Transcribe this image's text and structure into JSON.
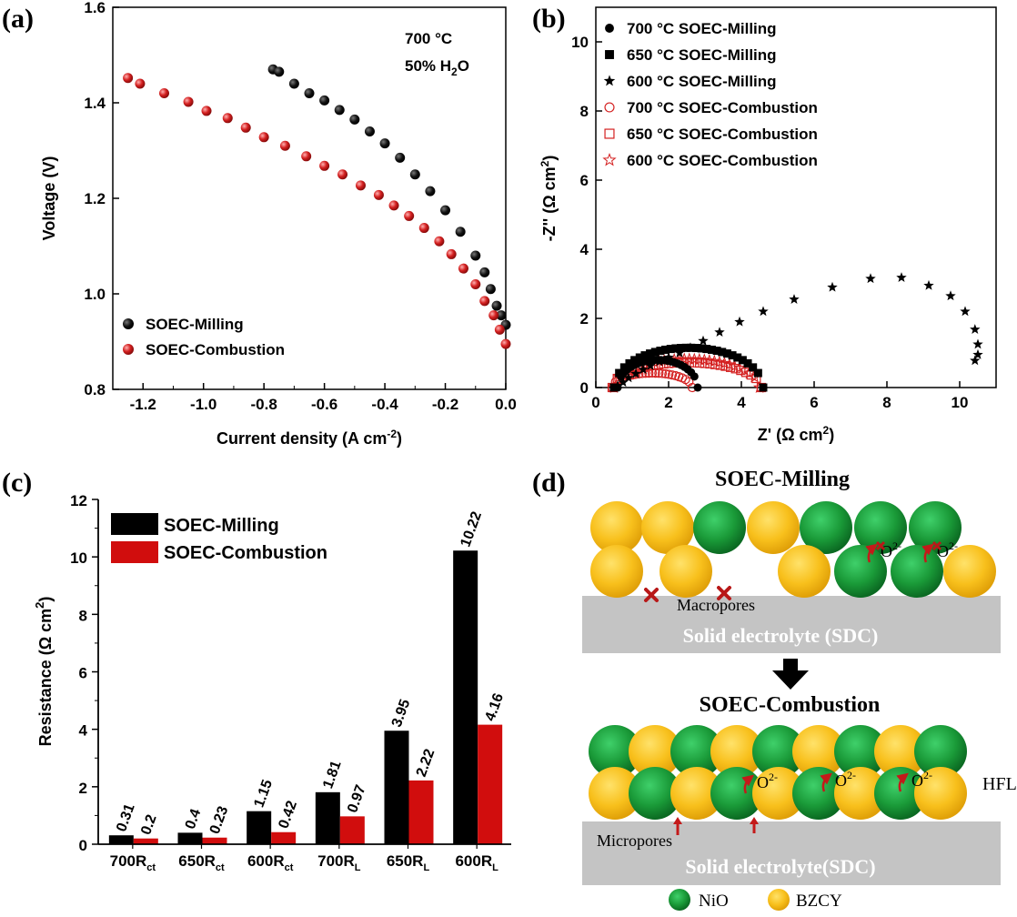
{
  "panel_labels": {
    "a": "(a)",
    "b": "(b)",
    "c": "(c)",
    "d": "(d)"
  },
  "chart_data": [
    {
      "type": "scatter",
      "panel": "a",
      "xlabel": "Current density (A cm",
      "xlabel_sup": "-2",
      "xlabel_end": ")",
      "ylabel": "Voltage (V)",
      "xlim": [
        -1.3,
        0.0
      ],
      "ylim": [
        0.8,
        1.6
      ],
      "xticks": [
        "-1.2",
        "-1.0",
        "-0.8",
        "-0.6",
        "-0.4",
        "-0.2",
        "0.0"
      ],
      "xtick_values": [
        -1.2,
        -1.0,
        -0.8,
        -0.6,
        -0.4,
        -0.2,
        0.0
      ],
      "yticks": [
        "0.8",
        "1.0",
        "1.2",
        "1.4",
        "1.6"
      ],
      "ytick_values": [
        0.8,
        1.0,
        1.2,
        1.4,
        1.6
      ],
      "annotation_temp": "700 °C",
      "annotation_h2o_a": "50% H",
      "annotation_h2o_sub": "2",
      "annotation_h2o_b": "O",
      "legend_position": "bottom-left",
      "series": [
        {
          "name": "SOEC-Milling",
          "color": "#000000",
          "x": [
            -0.77,
            -0.75,
            -0.7,
            -0.65,
            -0.6,
            -0.55,
            -0.5,
            -0.45,
            -0.4,
            -0.35,
            -0.3,
            -0.25,
            -0.2,
            -0.15,
            -0.1,
            -0.07,
            -0.05,
            -0.03,
            -0.015,
            0.0
          ],
          "y": [
            1.47,
            1.465,
            1.44,
            1.42,
            1.405,
            1.385,
            1.365,
            1.34,
            1.315,
            1.285,
            1.25,
            1.215,
            1.175,
            1.13,
            1.08,
            1.045,
            1.01,
            0.975,
            0.955,
            0.935
          ]
        },
        {
          "name": "SOEC-Combustion",
          "color": "#d42020",
          "x": [
            -1.25,
            -1.21,
            -1.13,
            -1.05,
            -0.99,
            -0.92,
            -0.86,
            -0.8,
            -0.73,
            -0.66,
            -0.6,
            -0.54,
            -0.48,
            -0.42,
            -0.37,
            -0.32,
            -0.27,
            -0.22,
            -0.18,
            -0.14,
            -0.1,
            -0.07,
            -0.04,
            -0.02,
            0.0
          ],
          "y": [
            1.452,
            1.44,
            1.42,
            1.402,
            1.383,
            1.368,
            1.348,
            1.328,
            1.31,
            1.288,
            1.268,
            1.25,
            1.227,
            1.207,
            1.185,
            1.163,
            1.138,
            1.11,
            1.083,
            1.053,
            1.02,
            0.985,
            0.955,
            0.925,
            0.895
          ]
        }
      ]
    },
    {
      "type": "scatter",
      "panel": "b",
      "xlabel": "Z' (Ω cm",
      "xlabel_sup": "2",
      "xlabel_end": ")",
      "ylabel": "-Z'' (Ω cm",
      "ylabel_sup": "2",
      "ylabel_end": ")",
      "xlim": [
        0,
        11
      ],
      "ylim": [
        0,
        11
      ],
      "xticks": [
        "0",
        "2",
        "4",
        "6",
        "8",
        "10"
      ],
      "xtick_values": [
        0,
        2,
        4,
        6,
        8,
        10
      ],
      "yticks": [
        "0",
        "2",
        "4",
        "6",
        "8",
        "10"
      ],
      "ytick_values": [
        0,
        2,
        4,
        6,
        8,
        10
      ],
      "legend_position": "top-left",
      "series": [
        {
          "name": "700 °C SOEC-Milling",
          "marker": "circle-filled",
          "color": "#000000",
          "center": 1.7,
          "radius": 1.1,
          "amplitude": 0.8,
          "from": 0.6,
          "to": 2.8,
          "count": 25
        },
        {
          "name": "650 °C SOEC-Milling",
          "marker": "square-filled",
          "color": "#000000",
          "center": 2.55,
          "radius": 2.05,
          "amplitude": 1.15,
          "from": 0.5,
          "to": 4.6,
          "count": 30
        },
        {
          "name": "600 °C SOEC-Milling",
          "marker": "star-filled",
          "color": "#000000",
          "x": [
            0.6,
            0.75,
            0.9,
            1.1,
            1.3,
            1.5,
            1.75,
            2.0,
            2.3,
            2.6,
            2.95,
            3.4,
            3.95,
            4.6,
            5.45,
            6.5,
            7.55,
            8.4,
            9.15,
            9.75,
            10.15,
            10.42,
            10.5,
            10.42
          ],
          "y": [
            0.05,
            0.15,
            0.28,
            0.4,
            0.52,
            0.63,
            0.75,
            0.87,
            1.0,
            1.15,
            1.35,
            1.6,
            1.9,
            2.2,
            2.55,
            2.9,
            3.15,
            3.18,
            2.95,
            2.65,
            2.2,
            1.68,
            1.25,
            0.78
          ],
          "extra_x": [
            10.5
          ],
          "extra_y": [
            0.95
          ]
        },
        {
          "name": "700 °C SOEC-Combustion",
          "marker": "circle-open",
          "color": "#d42020",
          "center": 1.55,
          "radius": 1.1,
          "amplitude": 0.42,
          "from": 0.45,
          "to": 2.65,
          "count": 25
        },
        {
          "name": "650 °C SOEC-Combustion",
          "marker": "square-open",
          "color": "#d42020",
          "center": 2.5,
          "radius": 2.05,
          "amplitude": 0.72,
          "from": 0.45,
          "to": 4.55,
          "count": 30
        },
        {
          "name": "600 °C SOEC-Combustion",
          "marker": "star-open",
          "color": "#d42020",
          "center": 2.5,
          "radius": 2.0,
          "amplitude": 0.82,
          "from": 0.5,
          "to": 4.5,
          "count": 30
        }
      ]
    },
    {
      "type": "bar",
      "panel": "c",
      "ylabel": "Resistance (Ω cm",
      "ylabel_sup": "2",
      "ylabel_end": ")",
      "ylim": [
        0,
        12
      ],
      "yticks": [
        "0",
        "2",
        "4",
        "6",
        "8",
        "10",
        "12"
      ],
      "ytick_values": [
        0,
        2,
        4,
        6,
        8,
        10,
        12
      ],
      "categories": [
        {
          "main": "700R",
          "sub": "ct"
        },
        {
          "main": "650R",
          "sub": "ct"
        },
        {
          "main": "600R",
          "sub": "ct"
        },
        {
          "main": "700R",
          "sub": "L"
        },
        {
          "main": "650R",
          "sub": "L"
        },
        {
          "main": "600R",
          "sub": "L"
        }
      ],
      "legend_position": "top-left",
      "series": [
        {
          "name": "SOEC-Milling",
          "color": "#000000",
          "values": [
            0.31,
            0.4,
            1.15,
            1.81,
            3.95,
            10.22
          ],
          "labels": [
            "0.31",
            "0.4",
            "1.15",
            "1.81",
            "3.95",
            "10.22"
          ]
        },
        {
          "name": "SOEC-Combustion",
          "color": "#d10d0d",
          "values": [
            0.2,
            0.23,
            0.42,
            0.97,
            2.22,
            4.16
          ],
          "labels": [
            "0.2",
            "0.23",
            "0.42",
            "0.97",
            "2.22",
            "4.16"
          ]
        }
      ]
    }
  ],
  "diagram_d": {
    "title_top": "SOEC-Milling",
    "title_bottom": "SOEC-Combustion",
    "macropores": "Macropores",
    "micropores": "Micropores",
    "electrolyte_top": "Solid electrolyte (SDC)",
    "electrolyte_bottom": "Solid electrolyte(SDC)",
    "ion": "O",
    "ion_sup": "2-",
    "hfl": "HFL",
    "legend_nio": "NiO",
    "legend_bzcy": "BZCY",
    "colors": {
      "nio": "#1e9e3a",
      "bzcy": "#f6c21a",
      "electrolyte": "#c4c4c4",
      "arrow": "#c41a1a"
    }
  }
}
